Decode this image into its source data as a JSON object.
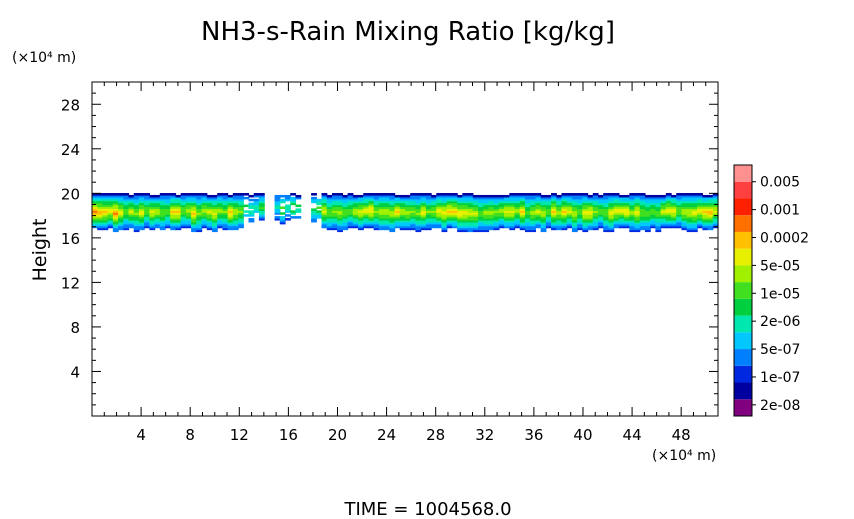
{
  "chart_data": {
    "type": "heatmap",
    "title": "NH3-s-Rain Mixing Ratio [kg/kg]",
    "xlabel": "",
    "ylabel": "Height",
    "x_unit": "(×10⁴ m)",
    "y_unit": "(×10⁴ m)",
    "xlim": [
      0,
      51
    ],
    "ylim": [
      0,
      30
    ],
    "x_ticks": [
      "4",
      "8",
      "12",
      "16",
      "20",
      "24",
      "28",
      "32",
      "36",
      "40",
      "44",
      "48"
    ],
    "y_ticks": [
      "4",
      "8",
      "12",
      "16",
      "20",
      "24",
      "28"
    ],
    "grid": false,
    "colorbar": {
      "labels": [
        "0.005",
        "0.001",
        "0.0002",
        "5e-05",
        "1e-05",
        "2e-06",
        "5e-07",
        "1e-07",
        "2e-08"
      ],
      "colors": [
        "#800080",
        "#0000a0",
        "#0028e0",
        "#0080ff",
        "#00c8ff",
        "#00e8b0",
        "#00d040",
        "#40e020",
        "#a0f000",
        "#e8f000",
        "#ffc000",
        "#ff7000",
        "#ff2000",
        "#ff4040",
        "#ff9090"
      ]
    },
    "layer": {
      "band_y_range": [
        17,
        20
      ],
      "core_y_range": [
        17.5,
        19.2
      ],
      "gaps_x": [
        [
          14.2,
          15.0
        ],
        [
          17.1,
          18.0
        ]
      ],
      "peak_value_range": [
        "1e-05",
        "5e-05"
      ]
    },
    "footer": "TIME  =  1004568.0"
  }
}
